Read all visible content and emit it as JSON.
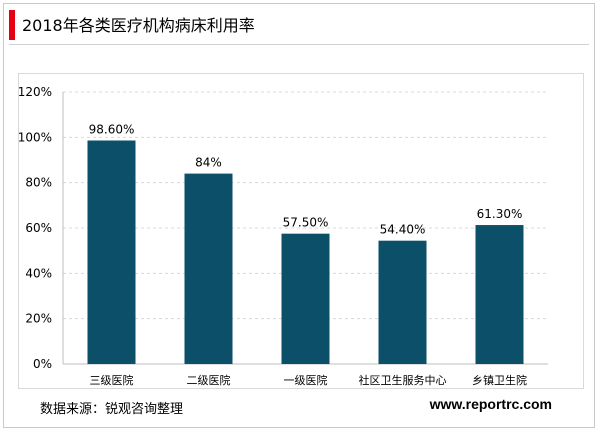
{
  "page": {
    "title": "2018年各类医疗机构病床利用率",
    "source": "数据来源：锐观咨询整理",
    "site": "www.reportrc.com",
    "accent_color": "#e60012"
  },
  "chart_data": {
    "type": "bar",
    "title": "2018年各类医疗机构病床利用率",
    "categories": [
      "三级医院",
      "二级医院",
      "一级医院",
      "社区卫生服务中心",
      "乡镇卫生院"
    ],
    "values": [
      98.6,
      84,
      57.5,
      54.4,
      61.3
    ],
    "value_labels": [
      "98.60%",
      "84%",
      "57.50%",
      "54.40%",
      "61.30%"
    ],
    "ylim": [
      0,
      120
    ],
    "yticks": [
      0,
      20,
      40,
      60,
      80,
      100,
      120
    ],
    "ytick_labels": [
      "0%",
      "20%",
      "40%",
      "60%",
      "80%",
      "100%",
      "120%"
    ],
    "grid": true,
    "bar_color": "#0b4f68"
  }
}
